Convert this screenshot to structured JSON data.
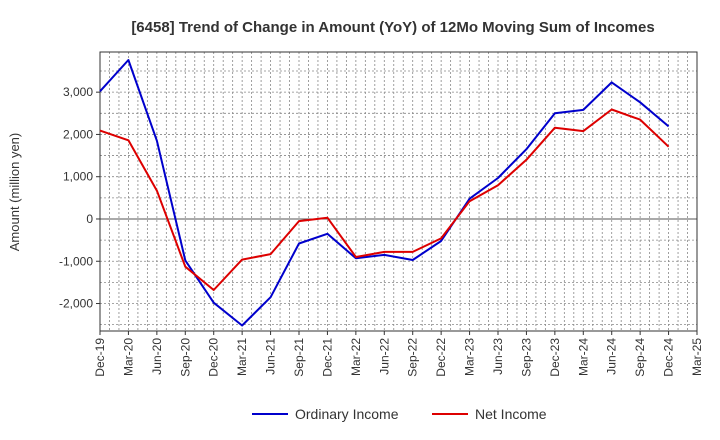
{
  "chart_data": {
    "type": "line",
    "title": "[6458]  Trend of Change in Amount (YoY) of 12Mo Moving Sum of Incomes",
    "ylabel": "Amount (million yen)",
    "xlabel": "",
    "ylim": [
      -2650,
      3950
    ],
    "yticks": [
      -2000,
      -1000,
      0,
      1000,
      2000,
      3000
    ],
    "ytick_labels": [
      "-2,000",
      "-1,000",
      "0",
      "1,000",
      "2,000",
      "3,000"
    ],
    "categories": [
      "Dec-19",
      "Mar-20",
      "Jun-20",
      "Sep-20",
      "Dec-20",
      "Mar-21",
      "Jun-21",
      "Sep-21",
      "Dec-21",
      "Mar-22",
      "Jun-22",
      "Sep-22",
      "Dec-22",
      "Mar-23",
      "Jun-23",
      "Sep-23",
      "Dec-23",
      "Mar-24",
      "Jun-24",
      "Sep-24",
      "Dec-24",
      "Mar-25"
    ],
    "grid": true,
    "legend_position": "bottom-center",
    "series": [
      {
        "name": "Ordinary Income",
        "color": "#0000cc",
        "values": [
          3020,
          3760,
          1850,
          -980,
          -1980,
          -2520,
          -1850,
          -580,
          -350,
          -930,
          -850,
          -970,
          -520,
          480,
          970,
          1650,
          2500,
          2580,
          3230,
          2760,
          2190,
          null
        ]
      },
      {
        "name": "Net Income",
        "color": "#dd0000",
        "values": [
          2090,
          1860,
          670,
          -1130,
          -1680,
          -960,
          -830,
          -50,
          30,
          -900,
          -780,
          -780,
          -460,
          420,
          800,
          1400,
          2160,
          2080,
          2590,
          2350,
          1710,
          null
        ]
      }
    ]
  }
}
